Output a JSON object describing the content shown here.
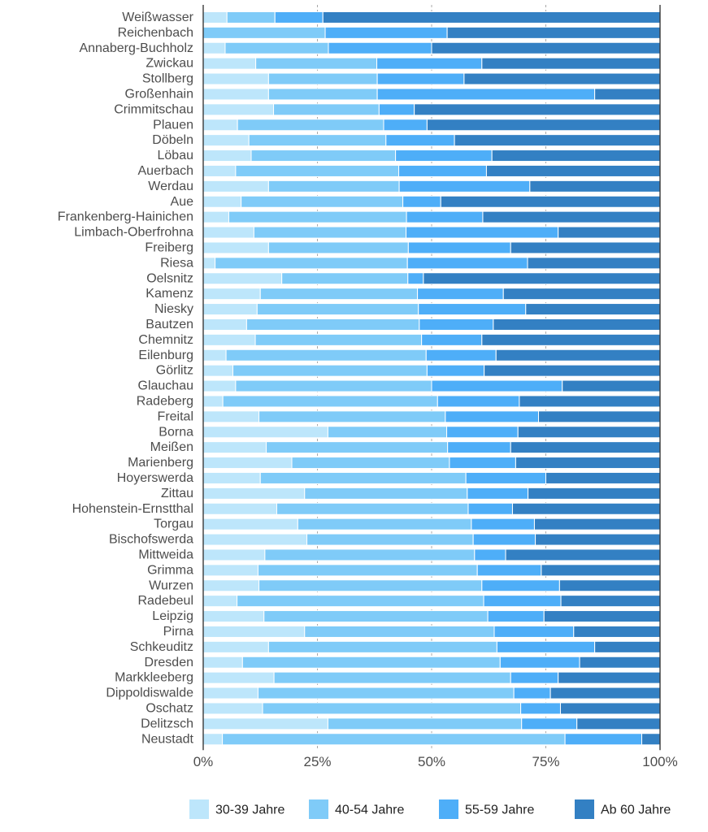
{
  "chart_data": {
    "type": "bar",
    "orientation": "horizontal",
    "stacked": "percent",
    "xlim": [
      0,
      100
    ],
    "x_ticks": [
      0,
      25,
      50,
      75,
      100
    ],
    "x_tick_labels": [
      "0%",
      "25%",
      "50%",
      "75%",
      "100%"
    ],
    "grid": "vertical-dashed",
    "legend_position": "bottom-right",
    "categories": [
      "Weißwasser",
      "Reichenbach",
      "Annaberg-Buchholz",
      "Zwickau",
      "Stollberg",
      "Großenhain",
      "Crimmitschau",
      "Plauen",
      "Döbeln",
      "Löbau",
      "Auerbach",
      "Werdau",
      "Aue",
      "Frankenberg-Hainichen",
      "Limbach-Oberfrohna",
      "Freiberg",
      "Riesa",
      "Oelsnitz",
      "Kamenz",
      "Niesky",
      "Bautzen",
      "Chemnitz",
      "Eilenburg",
      "Görlitz",
      "Glauchau",
      "Radeberg",
      "Freital",
      "Borna",
      "Meißen",
      "Marienberg",
      "Hoyerswerda",
      "Zittau",
      "Hohenstein-Ernstthal",
      "Torgau",
      "Bischofswerda",
      "Mittweida",
      "Grimma",
      "Wurzen",
      "Radebeul",
      "Leipzig",
      "Pirna",
      "Schkeuditz",
      "Dresden",
      "Markkleeberg",
      "Dippoldiswalde",
      "Oschatz",
      "Delitzsch",
      "Neustadt"
    ],
    "series": [
      {
        "name": "30-39 Jahre",
        "color": "#bde6fb",
        "values": [
          5.2,
          0,
          4.8,
          11.5,
          14.3,
          14.3,
          15.4,
          7.5,
          10,
          10.5,
          7.1,
          14.3,
          8.3,
          5.6,
          11.1,
          14.3,
          2.6,
          17.2,
          12.5,
          11.8,
          9.5,
          11.4,
          5,
          6.5,
          7.1,
          4.3,
          12.2,
          27.3,
          13.8,
          19.4,
          12.5,
          22.2,
          16.1,
          20.7,
          22.7,
          13.5,
          12,
          12.2,
          7.4,
          13.3,
          22.2,
          14.3,
          8.6,
          15.5,
          12,
          13,
          27.3,
          4.2
        ]
      },
      {
        "name": "40-54 Jahre",
        "color": "#7fcbf8",
        "values": [
          10.5,
          26.7,
          22.6,
          26.5,
          23.8,
          23.8,
          23.1,
          32,
          30,
          31.6,
          35.7,
          28.6,
          35.4,
          38.9,
          33.3,
          30.6,
          42.1,
          27.6,
          34.4,
          35.3,
          37.8,
          36.4,
          43.8,
          42.5,
          42.9,
          47,
          40.8,
          26,
          39.7,
          34.5,
          45,
          35.6,
          41.9,
          38,
          36.4,
          45.9,
          48,
          48.8,
          54,
          49,
          41.5,
          50,
          56.4,
          51.8,
          56,
          56.5,
          42.4,
          75
        ]
      },
      {
        "name": "55-59 Jahre",
        "color": "#4eaef8",
        "values": [
          10.5,
          26.7,
          22.6,
          23,
          19,
          47.6,
          7.7,
          9.5,
          15,
          21.1,
          19.2,
          28.6,
          8.3,
          16.7,
          33.3,
          22.4,
          26.3,
          3.4,
          18.8,
          23.5,
          16.2,
          13.2,
          15.3,
          12.5,
          28.6,
          17.9,
          20.4,
          15.6,
          13.8,
          14.5,
          17.5,
          13.3,
          9.7,
          13.8,
          13.6,
          6.8,
          14,
          17,
          16.9,
          12.3,
          17.4,
          21.4,
          17.4,
          10.4,
          8,
          8.7,
          12.1,
          16.8
        ]
      },
      {
        "name": "Ab 60 Jahre",
        "color": "#3380c3",
        "values": [
          73.8,
          46.6,
          50,
          39,
          42.9,
          14.3,
          53.8,
          51,
          45,
          36.8,
          38,
          28.5,
          48,
          38.8,
          22.3,
          32.7,
          29,
          51.8,
          34.3,
          29.4,
          36.5,
          39,
          35.9,
          38.5,
          21.4,
          30.8,
          26.6,
          31.1,
          32.7,
          31.6,
          25,
          28.9,
          32.3,
          27.5,
          27.3,
          33.8,
          26,
          22,
          21.7,
          25.4,
          18.9,
          14.3,
          17.6,
          22.3,
          24,
          21.8,
          18.2,
          4
        ]
      }
    ]
  }
}
